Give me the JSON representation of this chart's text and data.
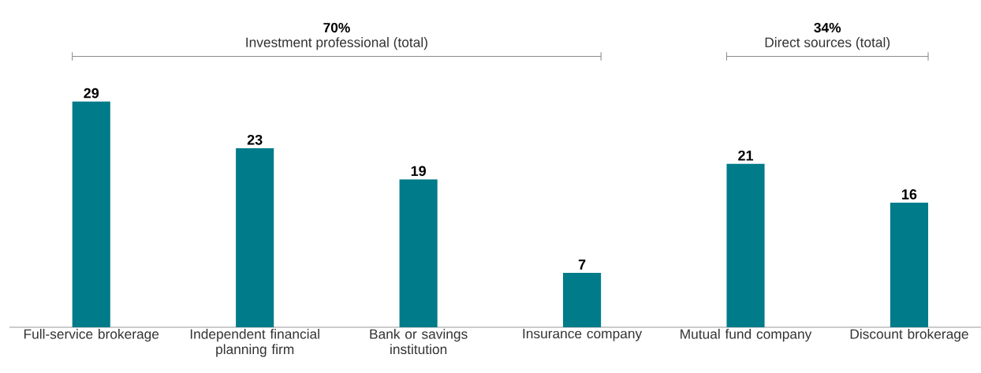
{
  "chart_data": {
    "type": "bar",
    "categories": [
      "Full-service brokerage",
      "Independent financial planning firm",
      "Bank or savings institution",
      "Insurance company",
      "Mutual fund company",
      "Discount brokerage"
    ],
    "values": [
      29,
      23,
      19,
      7,
      21,
      16
    ],
    "color": "#007b8a",
    "data_labels": true,
    "annotations": [
      "70%",
      "Investment professional (total)",
      "34%",
      "Direct sources (total)"
    ]
  }
}
